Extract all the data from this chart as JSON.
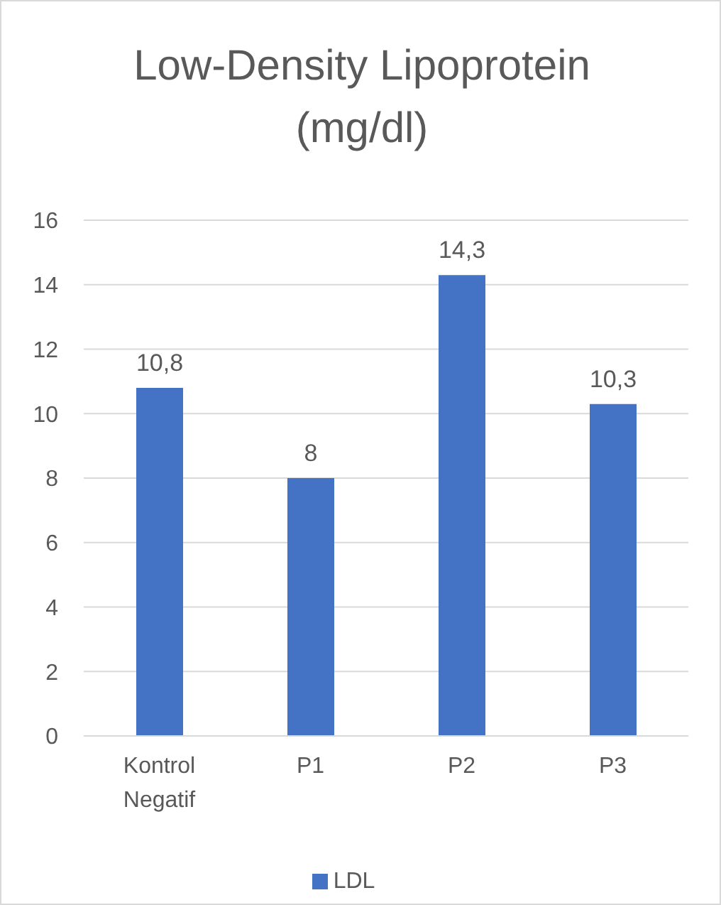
{
  "chart_data": {
    "type": "bar",
    "title": "Low-Density Lipoprotein (mg/dl)",
    "categories": [
      "Kontrol Negatif",
      "P1",
      "P2",
      "P3"
    ],
    "series": [
      {
        "name": "LDL",
        "color": "#4472c4",
        "values": [
          10.8,
          8,
          14.3,
          10.3
        ],
        "value_labels": [
          "10,8",
          "8",
          "14,3",
          "10,3"
        ]
      }
    ],
    "ylim": [
      0,
      16
    ],
    "yticks": [
      0,
      2,
      4,
      6,
      8,
      10,
      12,
      14,
      16
    ],
    "grid": "y",
    "legend": "bottom"
  }
}
